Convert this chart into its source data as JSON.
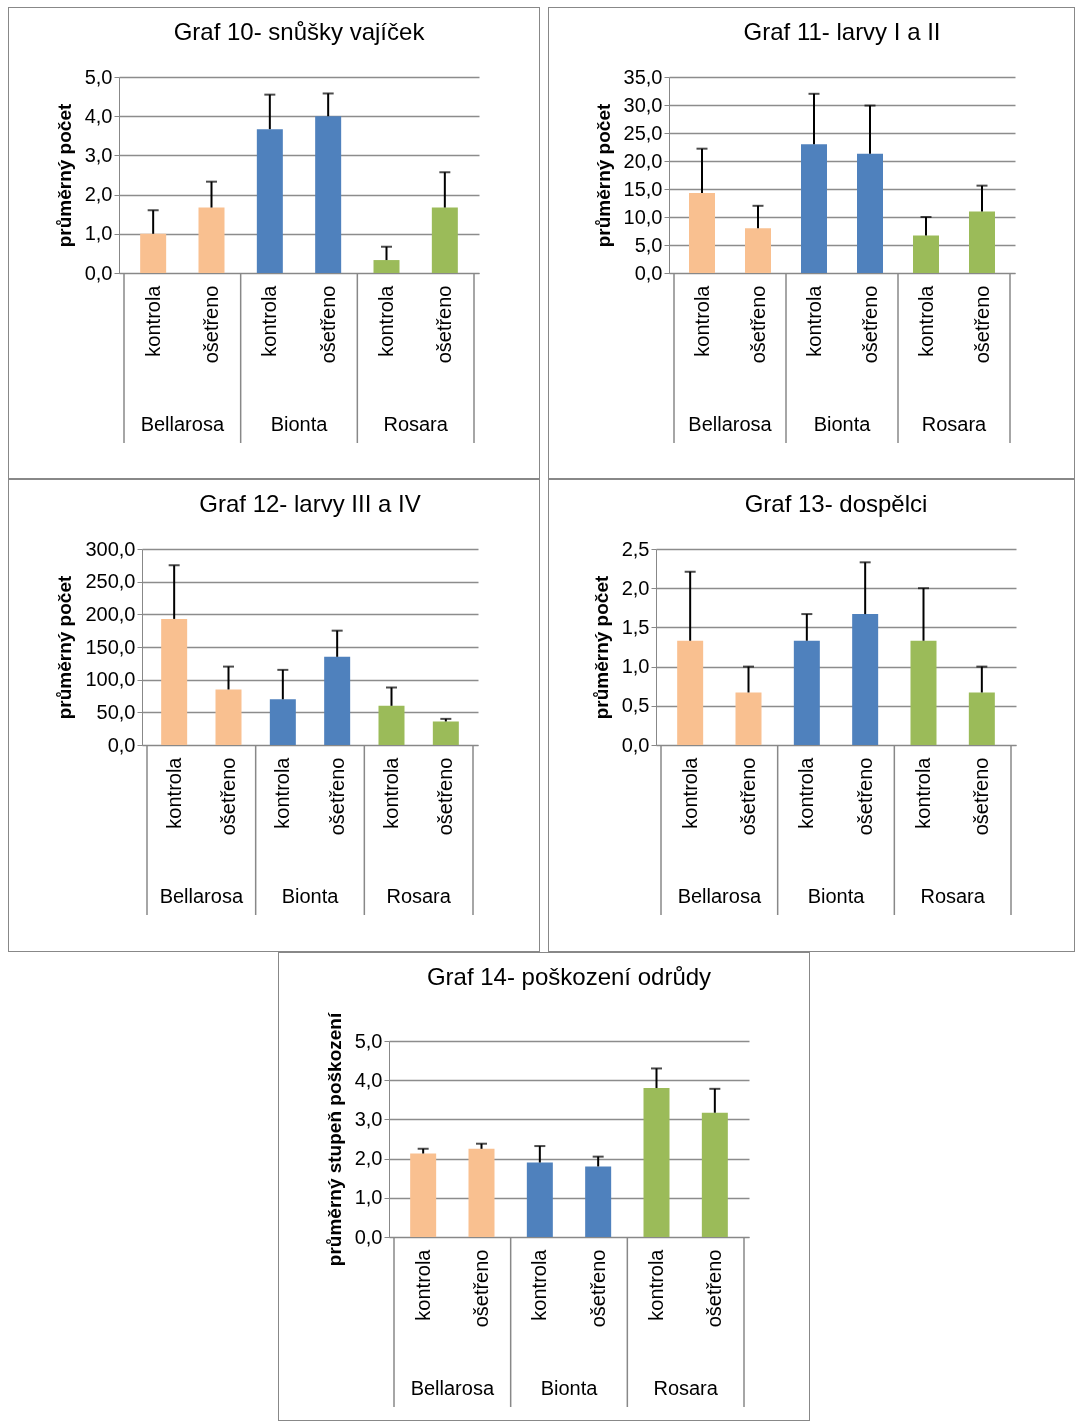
{
  "chart_data": [
    {
      "type": "bar",
      "title": "Graf 10- snůšky vajíček",
      "ylabel": "průměrný počet",
      "categories": [
        "kontrola",
        "ošetřeno",
        "kontrola",
        "ošetřeno",
        "kontrola",
        "ošetřeno"
      ],
      "ylim": [
        0,
        5
      ],
      "yticks": [
        {
          "value": 0,
          "label": "0,0"
        },
        {
          "value": 1,
          "label": "1,0"
        },
        {
          "value": 2,
          "label": "2,0"
        },
        {
          "value": 3,
          "label": "3,0"
        },
        {
          "value": 4,
          "label": "4,0"
        },
        {
          "value": 5,
          "label": "5,0"
        }
      ],
      "grid": "y",
      "values": [
        1.0,
        1.67,
        3.67,
        4.0,
        0.33,
        1.67
      ],
      "colors": [
        "#f9c090",
        "#f9c090",
        "#4f81bd",
        "#4f81bd",
        "#9bbb59",
        "#9bbb59"
      ],
      "errors": [
        [
          1.0,
          1.6
        ],
        [
          1.67,
          2.33
        ],
        [
          3.67,
          4.55
        ],
        [
          4.0,
          4.58
        ],
        [
          0.33,
          0.67
        ],
        [
          1.67,
          2.57
        ]
      ],
      "annotations": [
        "Bellarosa",
        "Bionta",
        "Rosara"
      ]
    },
    {
      "type": "bar",
      "title": "Graf 11- larvy I a II",
      "ylabel": "průměrný počet",
      "categories": [
        "kontrola",
        "ošetřeno",
        "kontrola",
        "ošetřeno",
        "kontrola",
        "ošetřeno"
      ],
      "ylim": [
        0,
        35
      ],
      "yticks": [
        {
          "value": 0,
          "label": "0,0"
        },
        {
          "value": 5,
          "label": "5,0"
        },
        {
          "value": 10,
          "label": "10,0"
        },
        {
          "value": 15,
          "label": "15,0"
        },
        {
          "value": 20,
          "label": "20,0"
        },
        {
          "value": 25,
          "label": "25,0"
        },
        {
          "value": 30,
          "label": "30,0"
        },
        {
          "value": 35,
          "label": "35,0"
        }
      ],
      "grid": "y",
      "values": [
        14.3,
        8.0,
        23.0,
        21.3,
        6.7,
        11.0
      ],
      "colors": [
        "#f9c090",
        "#f9c090",
        "#4f81bd",
        "#4f81bd",
        "#9bbb59",
        "#9bbb59"
      ],
      "errors": [
        [
          14.3,
          22.2
        ],
        [
          8.0,
          12.0
        ],
        [
          23.0,
          32.0
        ],
        [
          21.3,
          29.9
        ],
        [
          6.7,
          10.0
        ],
        [
          11.0,
          15.6
        ]
      ],
      "annotations": [
        "Bellarosa",
        "Bionta",
        "Rosara"
      ]
    },
    {
      "type": "bar",
      "title": "Graf 12- larvy III a IV",
      "ylabel": "průměrný počet",
      "categories": [
        "kontrola",
        "ošetřeno",
        "kontrola",
        "ošetřeno",
        "kontrola",
        "ošetřeno"
      ],
      "ylim": [
        0,
        300
      ],
      "yticks": [
        {
          "value": 0,
          "label": "0,0"
        },
        {
          "value": 50,
          "label": "50,0"
        },
        {
          "value": 100,
          "label": "100,0"
        },
        {
          "value": 150,
          "label": "150,0"
        },
        {
          "value": 200,
          "label": "200,0"
        },
        {
          "value": 250,
          "label": "250,0"
        },
        {
          "value": 300,
          "label": "300,0"
        }
      ],
      "grid": "y",
      "values": [
        193,
        85,
        70,
        135,
        60,
        36
      ],
      "colors": [
        "#f9c090",
        "#f9c090",
        "#4f81bd",
        "#4f81bd",
        "#9bbb59",
        "#9bbb59"
      ],
      "errors": [
        [
          193,
          275
        ],
        [
          85,
          120
        ],
        [
          70,
          115
        ],
        [
          135,
          175
        ],
        [
          60,
          88
        ],
        [
          36,
          40
        ]
      ],
      "annotations": [
        "Bellarosa",
        "Bionta",
        "Rosara"
      ]
    },
    {
      "type": "bar",
      "title": "Graf 13- dospělci",
      "ylabel": "průměrný počet",
      "categories": [
        "kontrola",
        "ošetřeno",
        "kontrola",
        "ošetřeno",
        "kontrola",
        "ošetřeno"
      ],
      "ylim": [
        0,
        2.5
      ],
      "yticks": [
        {
          "value": 0,
          "label": "0,0"
        },
        {
          "value": 0.5,
          "label": "0,5"
        },
        {
          "value": 1,
          "label": "1,0"
        },
        {
          "value": 1.5,
          "label": "1,5"
        },
        {
          "value": 2,
          "label": "2,0"
        },
        {
          "value": 2.5,
          "label": "2,5"
        }
      ],
      "grid": "y",
      "values": [
        1.33,
        0.67,
        1.33,
        1.67,
        1.33,
        0.67
      ],
      "colors": [
        "#f9c090",
        "#f9c090",
        "#4f81bd",
        "#4f81bd",
        "#9bbb59",
        "#9bbb59"
      ],
      "errors": [
        [
          1.33,
          2.21
        ],
        [
          0.67,
          1.0
        ],
        [
          1.33,
          1.67
        ],
        [
          1.67,
          2.33
        ],
        [
          1.33,
          2.0
        ],
        [
          0.67,
          1.0
        ]
      ],
      "annotations": [
        "Bellarosa",
        "Bionta",
        "Rosara"
      ]
    },
    {
      "type": "bar",
      "title": "Graf 14- poškození odrůdy",
      "ylabel": "průměrný stupeň poškození",
      "categories": [
        "kontrola",
        "ošetřeno",
        "kontrola",
        "ošetřeno",
        "kontrola",
        "ošetřeno"
      ],
      "ylim": [
        0,
        5
      ],
      "yticks": [
        {
          "value": 0,
          "label": "0,0"
        },
        {
          "value": 1,
          "label": "1,0"
        },
        {
          "value": 2,
          "label": "2,0"
        },
        {
          "value": 3,
          "label": "3,0"
        },
        {
          "value": 4,
          "label": "4,0"
        },
        {
          "value": 5,
          "label": "5,0"
        }
      ],
      "grid": "y",
      "values": [
        2.13,
        2.25,
        1.9,
        1.8,
        3.8,
        3.17
      ],
      "colors": [
        "#f9c090",
        "#f9c090",
        "#4f81bd",
        "#4f81bd",
        "#9bbb59",
        "#9bbb59"
      ],
      "errors": [
        [
          2.13,
          2.25
        ],
        [
          2.25,
          2.38
        ],
        [
          1.9,
          2.32
        ],
        [
          1.8,
          2.05
        ],
        [
          3.8,
          4.3
        ],
        [
          3.17,
          3.78
        ]
      ],
      "annotations": [
        "Bellarosa",
        "Bionta",
        "Rosara"
      ]
    }
  ]
}
